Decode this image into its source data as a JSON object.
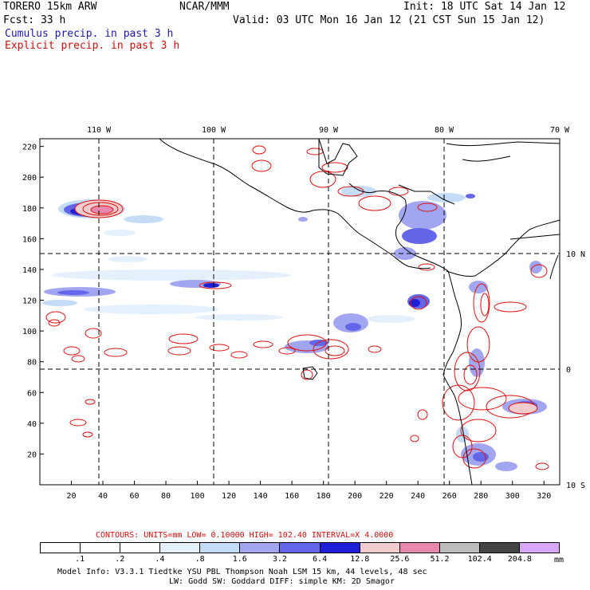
{
  "header": {
    "model": "TORERO  15km ARW",
    "center": "NCAR/MMM",
    "init": "Init: 18 UTC Sat 14 Jan 12",
    "fcst": "Fcst:   33 h",
    "valid": "Valid: 03 UTC Mon 16 Jan 12 (21 CST Sun 15 Jan 12)",
    "legend_cumulus": "Cumulus precip. in past 3 h",
    "legend_explicit": "Explicit precip. in past 3 h"
  },
  "colors": {
    "cumulus_label": "#1a1aa6",
    "explicit_label": "#cc1010",
    "explicit_contour": "#dd1111",
    "coastline": "#000000",
    "grid": "#000000"
  },
  "map": {
    "top_lon_labels": [
      "110 W",
      "100 W",
      "90 W",
      "80 W",
      "70 W"
    ],
    "right_lat_labels": [
      "10 N",
      "0",
      "10 S"
    ],
    "x_ticks": [
      "20",
      "40",
      "60",
      "80",
      "100",
      "120",
      "140",
      "160",
      "180",
      "200",
      "220",
      "240",
      "260",
      "280",
      "300",
      "320"
    ],
    "y_ticks": [
      "220",
      "200",
      "180",
      "160",
      "140",
      "120",
      "100",
      "80",
      "60",
      "40",
      "20"
    ],
    "x_range": [
      0,
      330
    ],
    "y_range": [
      0,
      225
    ]
  },
  "contour_info": {
    "text": "CONTOURS:  UNITS=mm  LOW= 0.10000       HIGH=  102.40       INTERVAL=X  4.0000"
  },
  "colorbar": {
    "labels": [
      ".1",
      ".2",
      ".4",
      ".8",
      "1.6",
      "3.2",
      "6.4",
      "12.8",
      "25.6",
      "51.2",
      "102.4",
      "204.8"
    ],
    "unit": "mm",
    "colors": [
      "#ffffff",
      "#ffffff",
      "#ffffff",
      "#e4f0fc",
      "#c4dcf6",
      "#a2a6f0",
      "#6366e8",
      "#1f1fd8",
      "#f2cccc",
      "#e888ac",
      "#bcbcbc",
      "#444444",
      "#d8a8f8"
    ]
  },
  "footer": {
    "line1": "Model Info: V3.3.1   Tiedtke YSU PBL  Thompson    Noah LSM  15 km,   44 levels,   48 sec",
    "line2": "LW: Godd SW: Goddard DIFF: simple KM: 2D Smagor"
  }
}
